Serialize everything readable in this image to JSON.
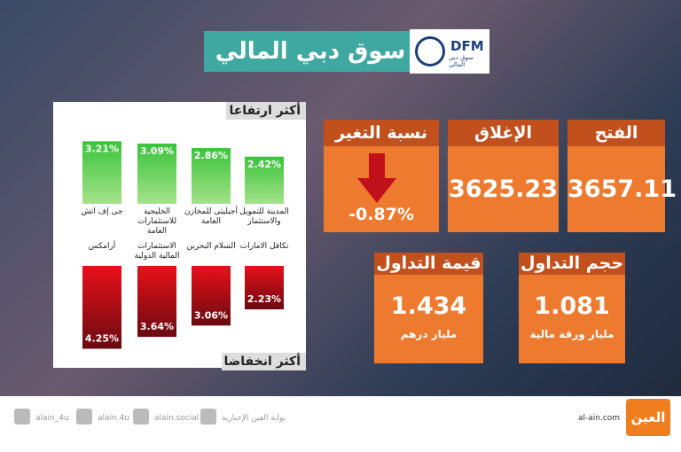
{
  "header": {
    "title": "سوق دبي المالي",
    "logo": "DFM",
    "logo_sub": "سوق دبي المالي"
  },
  "gainers": {
    "title": "أكثر ارتفاعا",
    "names": [
      "جى إف اتش",
      "الخليجية للاستثمارات العامة",
      "أجيليتى للمخازن العامة",
      "المدينة للتمويل والاستثمار"
    ],
    "values": [
      3.21,
      3.09,
      2.86,
      2.42
    ],
    "value_labels": [
      "3.21%",
      "3.09%",
      "2.86%",
      "2.42%"
    ]
  },
  "losers": {
    "title": "أكثر انخفاضا",
    "names": [
      "أرامكس",
      "الاستثمارات المالية الدولية",
      "السلام البحرين",
      "تكافل الامارات"
    ],
    "values": [
      4.25,
      3.64,
      3.06,
      2.23
    ],
    "value_labels": [
      "4.25%",
      "3.64%",
      "3.06%",
      "2.23%"
    ]
  },
  "open": {
    "label": "الفتح",
    "value": "3657.11"
  },
  "close": {
    "label": "الإغلاق",
    "value": "3625.23"
  },
  "change": {
    "label": "نسبة التغير",
    "value": "-0.87%"
  },
  "volume": {
    "label": "حجم التداول",
    "value": "1.081",
    "unit": "مليار ورقة مالية"
  },
  "turnover": {
    "label": "قيمة التداول",
    "value": "1.434",
    "unit": "مليار درهم"
  },
  "footer": {
    "twitter": "alain_4u",
    "instagram": "alain.4u",
    "facebook": "alain.social",
    "youtube": "بوابة العين الإخبارية",
    "site": "al-ain.com",
    "logo": "العين"
  }
}
